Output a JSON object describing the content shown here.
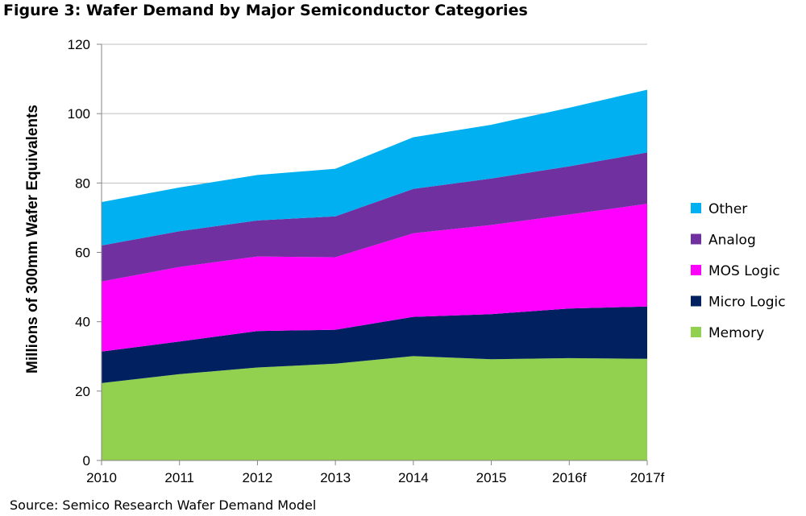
{
  "title": "Figure 3:  Wafer Demand by Major Semiconductor Categories",
  "source": "Source:  Semico Research Wafer Demand Model",
  "chart_data": {
    "type": "area",
    "stacked": true,
    "categories": [
      "2010",
      "2011",
      "2012",
      "2013",
      "2014",
      "2015",
      "2016f",
      "2017f"
    ],
    "ylabel": "Millions of 300mm Wafer Equivalents",
    "xlabel": "",
    "ylim": [
      0,
      120
    ],
    "yticks": [
      0,
      20,
      40,
      60,
      80,
      100,
      120
    ],
    "grid": "horizontal",
    "legend_position": "right",
    "series": [
      {
        "name": "Memory",
        "color": "#92D050",
        "values": [
          22.3,
          24.9,
          26.8,
          27.9,
          30.1,
          29.2,
          29.5,
          29.3
        ]
      },
      {
        "name": "Micro Logic",
        "color": "#002060",
        "values": [
          9.1,
          9.4,
          10.5,
          9.8,
          11.3,
          13.0,
          14.3,
          15.1
        ]
      },
      {
        "name": "MOS Logic",
        "color": "#FF00FF",
        "values": [
          20.2,
          21.5,
          21.5,
          20.9,
          24.1,
          25.7,
          27.1,
          29.6
        ]
      },
      {
        "name": "Analog",
        "color": "#7030A0",
        "values": [
          10.4,
          10.3,
          10.4,
          11.8,
          12.8,
          13.4,
          13.9,
          14.8
        ]
      },
      {
        "name": "Other",
        "color": "#00B0F0",
        "values": [
          12.5,
          12.6,
          13.1,
          13.7,
          14.9,
          15.5,
          16.9,
          18.1
        ]
      }
    ]
  }
}
